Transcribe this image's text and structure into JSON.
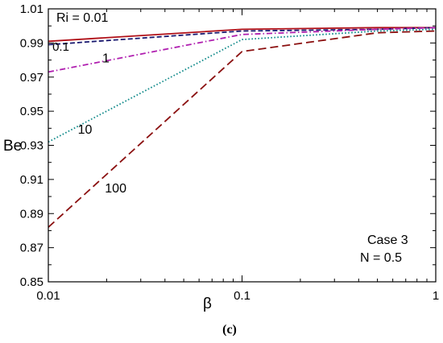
{
  "chart_data": {
    "type": "line",
    "x_scale": "log",
    "x": [
      0.01,
      0.1,
      0.5,
      1
    ],
    "xlim": [
      0.01,
      1
    ],
    "ylim": [
      0.85,
      1.01
    ],
    "xlabel": "β",
    "ylabel": "Be",
    "x_ticks": [
      {
        "value": 0.01,
        "label": "0.01"
      },
      {
        "value": 0.1,
        "label": "0.1"
      },
      {
        "value": 1,
        "label": "1"
      }
    ],
    "y_ticks": [
      {
        "value": 1.01,
        "label": "1.01"
      },
      {
        "value": 0.99,
        "label": "0.99"
      },
      {
        "value": 0.97,
        "label": "0.97"
      },
      {
        "value": 0.95,
        "label": "0.95"
      },
      {
        "value": 0.93,
        "label": "0.93"
      },
      {
        "value": 0.91,
        "label": "0.91"
      },
      {
        "value": 0.89,
        "label": "0.89"
      },
      {
        "value": 0.87,
        "label": "0.87"
      },
      {
        "value": 0.85,
        "label": "0.85"
      }
    ],
    "series": [
      {
        "name": "Ri = 0.01",
        "values": [
          0.991,
          0.998,
          0.999,
          0.999
        ],
        "color": "#b01018",
        "dash": "solid"
      },
      {
        "name": "0.1",
        "values": [
          0.989,
          0.997,
          0.998,
          0.999
        ],
        "color": "#1a1a70",
        "dash": "dashed"
      },
      {
        "name": "1",
        "values": [
          0.973,
          0.995,
          0.998,
          0.999
        ],
        "color": "#b020b0",
        "dash": "dashdot"
      },
      {
        "name": "10",
        "values": [
          0.932,
          0.992,
          0.997,
          0.998
        ],
        "color": "#108a8a",
        "dash": "dotted"
      },
      {
        "name": "100",
        "values": [
          0.882,
          0.985,
          0.996,
          0.997
        ],
        "color": "#8b1010",
        "dash": "longdash"
      }
    ],
    "annotations": [
      "Case 3",
      "N = 0.5"
    ],
    "caption": "(c)",
    "grid": false,
    "legend": "inline labels near curves"
  }
}
